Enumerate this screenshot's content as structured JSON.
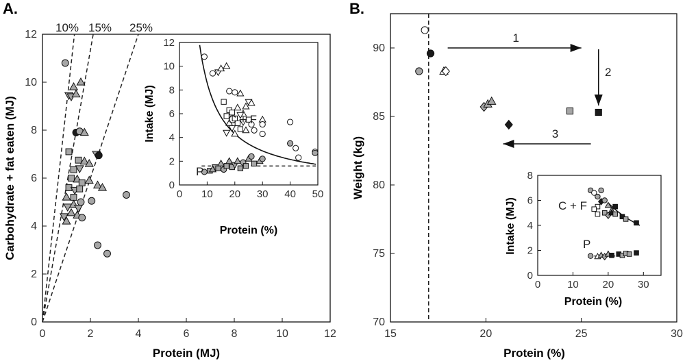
{
  "colors": {
    "gray_fill": "#a6a6a6",
    "dark_fill": "#1a1a1a",
    "axis": "#111111",
    "white": "#ffffff"
  },
  "chart_data": [
    {
      "panel": "A.",
      "type": "scatter",
      "xlabel": "Protein (MJ)",
      "ylabel": "Carbohydrate + fat eaten (MJ)",
      "xlim": [
        0,
        12
      ],
      "ylim": [
        0,
        12
      ],
      "xticks": [
        "0",
        "2",
        "4",
        "6",
        "8",
        "10",
        "12"
      ],
      "yticks": [
        "0",
        "2",
        "4",
        "6",
        "8",
        "10",
        "12"
      ],
      "reference_lines": [
        {
          "label": "10%",
          "slope": 9,
          "style": "dashed"
        },
        {
          "label": "15%",
          "slope": 5.67,
          "style": "dashed"
        },
        {
          "label": "25%",
          "slope": 3,
          "style": "dashed"
        }
      ],
      "points": [
        {
          "x": 0.95,
          "y": 10.8,
          "m": "circle",
          "f": "gray"
        },
        {
          "x": 1.1,
          "y": 9.45,
          "m": "tri-down",
          "f": "gray"
        },
        {
          "x": 1.3,
          "y": 9.8,
          "m": "tri-up",
          "f": "gray"
        },
        {
          "x": 1.6,
          "y": 10.0,
          "m": "tri-up",
          "f": "gray"
        },
        {
          "x": 1.2,
          "y": 9.4,
          "m": "tri-down",
          "f": "gray"
        },
        {
          "x": 1.4,
          "y": 9.5,
          "m": "tri-up",
          "f": "gray"
        },
        {
          "x": 1.4,
          "y": 7.9,
          "m": "circle",
          "f": "dark"
        },
        {
          "x": 1.55,
          "y": 7.95,
          "m": "circle",
          "f": "gray"
        },
        {
          "x": 1.75,
          "y": 7.9,
          "m": "tri-up",
          "f": "gray"
        },
        {
          "x": 1.1,
          "y": 7.1,
          "m": "square",
          "f": "gray"
        },
        {
          "x": 2.25,
          "y": 7.0,
          "m": "tri-down",
          "f": "gray"
        },
        {
          "x": 2.35,
          "y": 6.95,
          "m": "circle",
          "f": "dark"
        },
        {
          "x": 1.5,
          "y": 6.75,
          "m": "square",
          "f": "gray"
        },
        {
          "x": 1.75,
          "y": 6.7,
          "m": "tri-up",
          "f": "gray"
        },
        {
          "x": 1.95,
          "y": 6.6,
          "m": "tri-up",
          "f": "gray"
        },
        {
          "x": 1.3,
          "y": 6.35,
          "m": "square",
          "f": "gray"
        },
        {
          "x": 1.55,
          "y": 6.4,
          "m": "tri-down",
          "f": "gray"
        },
        {
          "x": 1.2,
          "y": 6.0,
          "m": "square",
          "f": "gray"
        },
        {
          "x": 1.45,
          "y": 5.95,
          "m": "tri-up",
          "f": "gray"
        },
        {
          "x": 1.65,
          "y": 5.8,
          "m": "square",
          "f": "gray"
        },
        {
          "x": 1.95,
          "y": 5.9,
          "m": "tri-up",
          "f": "gray"
        },
        {
          "x": 1.1,
          "y": 5.6,
          "m": "square",
          "f": "gray"
        },
        {
          "x": 1.35,
          "y": 5.5,
          "m": "tri-down",
          "f": "gray"
        },
        {
          "x": 1.55,
          "y": 5.55,
          "m": "square",
          "f": "gray"
        },
        {
          "x": 2.3,
          "y": 5.7,
          "m": "tri-up",
          "f": "gray"
        },
        {
          "x": 2.5,
          "y": 5.6,
          "m": "tri-up",
          "f": "gray"
        },
        {
          "x": 1.0,
          "y": 5.2,
          "m": "tri-up",
          "f": "gray"
        },
        {
          "x": 1.3,
          "y": 5.2,
          "m": "square",
          "f": "gray"
        },
        {
          "x": 1.6,
          "y": 5.0,
          "m": "circle",
          "f": "gray"
        },
        {
          "x": 2.05,
          "y": 5.05,
          "m": "circle",
          "f": "gray"
        },
        {
          "x": 1.05,
          "y": 4.8,
          "m": "tri-down",
          "f": "gray"
        },
        {
          "x": 1.3,
          "y": 4.9,
          "m": "tri-up",
          "f": "gray"
        },
        {
          "x": 1.5,
          "y": 4.75,
          "m": "tri-down",
          "f": "gray"
        },
        {
          "x": 1.2,
          "y": 4.55,
          "m": "tri-up",
          "f": "gray"
        },
        {
          "x": 1.45,
          "y": 4.45,
          "m": "tri-up",
          "f": "gray"
        },
        {
          "x": 0.9,
          "y": 4.4,
          "m": "tri-down",
          "f": "gray"
        },
        {
          "x": 1.65,
          "y": 4.35,
          "m": "circle",
          "f": "gray"
        },
        {
          "x": 1.0,
          "y": 4.2,
          "m": "tri-up",
          "f": "gray"
        },
        {
          "x": 3.5,
          "y": 5.3,
          "m": "circle",
          "f": "gray"
        },
        {
          "x": 2.3,
          "y": 3.2,
          "m": "circle",
          "f": "gray"
        },
        {
          "x": 2.7,
          "y": 2.85,
          "m": "circle",
          "f": "gray"
        }
      ],
      "inset": {
        "type": "scatter",
        "xlabel": "Protein (%)",
        "ylabel": "Intake (MJ)",
        "xlim": [
          0,
          50
        ],
        "ylim": [
          0,
          12
        ],
        "xticks": [
          "0",
          "10",
          "20",
          "30",
          "40",
          "50"
        ],
        "yticks": [
          "0",
          "2",
          "4",
          "6",
          "8",
          "10",
          "12"
        ],
        "labels": [
          "C + F",
          "P"
        ],
        "cf_curve": {
          "form": "y = 86/x",
          "style": "solid"
        },
        "p_line": {
          "y": 1.6,
          "style": "dashed"
        },
        "cf_points": [
          {
            "x": 9,
            "y": 10.8,
            "m": "circle",
            "f": "open"
          },
          {
            "x": 12,
            "y": 9.4,
            "m": "circle",
            "f": "open"
          },
          {
            "x": 14,
            "y": 9.5,
            "m": "tri-down",
            "f": "open"
          },
          {
            "x": 15,
            "y": 9.8,
            "m": "tri-up",
            "f": "open"
          },
          {
            "x": 17,
            "y": 10.0,
            "m": "tri-up",
            "f": "open"
          },
          {
            "x": 18,
            "y": 7.9,
            "m": "circle",
            "f": "open"
          },
          {
            "x": 20,
            "y": 7.8,
            "m": "circle",
            "f": "open"
          },
          {
            "x": 22,
            "y": 7.7,
            "m": "tri-up",
            "f": "open"
          },
          {
            "x": 16,
            "y": 7.0,
            "m": "square",
            "f": "open"
          },
          {
            "x": 25,
            "y": 7.0,
            "m": "tri-down",
            "f": "open"
          },
          {
            "x": 26,
            "y": 6.9,
            "m": "tri-up",
            "f": "open"
          },
          {
            "x": 18,
            "y": 6.3,
            "m": "square",
            "f": "open"
          },
          {
            "x": 19,
            "y": 6.1,
            "m": "square",
            "f": "open"
          },
          {
            "x": 21,
            "y": 6.5,
            "m": "tri-up",
            "f": "open"
          },
          {
            "x": 23,
            "y": 6.0,
            "m": "tri-up",
            "f": "open"
          },
          {
            "x": 24,
            "y": 6.6,
            "m": "tri-up",
            "f": "open"
          },
          {
            "x": 17,
            "y": 5.8,
            "m": "square",
            "f": "open"
          },
          {
            "x": 20,
            "y": 5.6,
            "m": "square",
            "f": "open"
          },
          {
            "x": 22,
            "y": 5.9,
            "m": "tri-down",
            "f": "open"
          },
          {
            "x": 25,
            "y": 5.5,
            "m": "square",
            "f": "open"
          },
          {
            "x": 18,
            "y": 5.2,
            "m": "tri-up",
            "f": "open"
          },
          {
            "x": 21,
            "y": 5.2,
            "m": "square",
            "f": "open"
          },
          {
            "x": 23,
            "y": 5.3,
            "m": "tri-down",
            "f": "open"
          },
          {
            "x": 26,
            "y": 5.1,
            "m": "circle",
            "f": "open"
          },
          {
            "x": 19,
            "y": 4.8,
            "m": "tri-down",
            "f": "open"
          },
          {
            "x": 22,
            "y": 4.7,
            "m": "square",
            "f": "open"
          },
          {
            "x": 24,
            "y": 4.6,
            "m": "tri-up",
            "f": "open"
          },
          {
            "x": 27,
            "y": 4.6,
            "m": "circle",
            "f": "open"
          },
          {
            "x": 17,
            "y": 4.4,
            "m": "tri-down",
            "f": "open"
          },
          {
            "x": 20,
            "y": 4.3,
            "m": "tri-up",
            "f": "open"
          },
          {
            "x": 30,
            "y": 5.5,
            "m": "tri-up",
            "f": "open"
          },
          {
            "x": 30,
            "y": 5.1,
            "m": "circle",
            "f": "open"
          },
          {
            "x": 30,
            "y": 4.3,
            "m": "circle",
            "f": "open"
          },
          {
            "x": 40,
            "y": 5.3,
            "m": "circle",
            "f": "open"
          },
          {
            "x": 42,
            "y": 3.1,
            "m": "circle",
            "f": "open"
          },
          {
            "x": 43,
            "y": 2.3,
            "m": "circle",
            "f": "open"
          },
          {
            "x": 49,
            "y": 2.8,
            "m": "circle",
            "f": "open"
          }
        ],
        "p_points": [
          {
            "x": 9,
            "y": 1.1,
            "m": "circle",
            "f": "gray"
          },
          {
            "x": 11,
            "y": 1.2,
            "m": "square",
            "f": "gray"
          },
          {
            "x": 12,
            "y": 1.3,
            "m": "tri-up",
            "f": "gray"
          },
          {
            "x": 13,
            "y": 1.5,
            "m": "tri-down",
            "f": "gray"
          },
          {
            "x": 14,
            "y": 1.4,
            "m": "square",
            "f": "gray"
          },
          {
            "x": 15,
            "y": 1.8,
            "m": "tri-up",
            "f": "gray"
          },
          {
            "x": 16,
            "y": 1.3,
            "m": "circle",
            "f": "gray"
          },
          {
            "x": 17,
            "y": 1.6,
            "m": "square",
            "f": "gray"
          },
          {
            "x": 18,
            "y": 2.0,
            "m": "tri-up",
            "f": "gray"
          },
          {
            "x": 19,
            "y": 1.5,
            "m": "square",
            "f": "gray"
          },
          {
            "x": 20,
            "y": 1.7,
            "m": "tri-down",
            "f": "gray"
          },
          {
            "x": 21,
            "y": 2.0,
            "m": "tri-up",
            "f": "gray"
          },
          {
            "x": 22,
            "y": 1.4,
            "m": "square",
            "f": "gray"
          },
          {
            "x": 23,
            "y": 1.9,
            "m": "circle",
            "f": "gray"
          },
          {
            "x": 24,
            "y": 1.6,
            "m": "square",
            "f": "gray"
          },
          {
            "x": 25,
            "y": 2.2,
            "m": "tri-up",
            "f": "gray"
          },
          {
            "x": 26,
            "y": 2.4,
            "m": "circle",
            "f": "gray"
          },
          {
            "x": 27,
            "y": 1.8,
            "m": "square",
            "f": "gray"
          },
          {
            "x": 29,
            "y": 2.0,
            "m": "tri-up",
            "f": "gray"
          },
          {
            "x": 30,
            "y": 2.2,
            "m": "circle",
            "f": "gray"
          },
          {
            "x": 40,
            "y": 3.5,
            "m": "circle",
            "f": "gray"
          },
          {
            "x": 49,
            "y": 2.7,
            "m": "circle",
            "f": "gray"
          }
        ]
      }
    },
    {
      "panel": "B.",
      "type": "scatter",
      "xlabel": "Protein (%)",
      "ylabel": "Weight (kg)",
      "xlim": [
        15,
        30
      ],
      "ylim": [
        70,
        92.5
      ],
      "xticks": [
        "15",
        "20",
        "25",
        "30"
      ],
      "yticks": [
        "70",
        "75",
        "80",
        "85",
        "90"
      ],
      "vline": {
        "x": 17.0,
        "style": "dashed"
      },
      "arrows": [
        {
          "label": "1",
          "from": [
            18.0,
            90.0
          ],
          "to": [
            25.0,
            90.0
          ]
        },
        {
          "label": "2",
          "from": [
            25.9,
            89.9
          ],
          "to": [
            25.9,
            85.8
          ]
        },
        {
          "label": "3",
          "from": [
            25.5,
            83.0
          ],
          "to": [
            20.9,
            83.0
          ]
        }
      ],
      "points": [
        {
          "x": 16.8,
          "y": 91.3,
          "m": "circle",
          "f": "open"
        },
        {
          "x": 17.1,
          "y": 89.6,
          "m": "circle",
          "f": "dark"
        },
        {
          "x": 16.5,
          "y": 88.3,
          "m": "circle",
          "f": "gray"
        },
        {
          "x": 17.8,
          "y": 88.3,
          "m": "tri-up",
          "f": "open"
        },
        {
          "x": 17.9,
          "y": 88.3,
          "m": "diamond",
          "f": "open"
        },
        {
          "x": 19.9,
          "y": 85.7,
          "m": "diamond",
          "f": "gray"
        },
        {
          "x": 20.1,
          "y": 85.9,
          "m": "tri-up",
          "f": "gray"
        },
        {
          "x": 20.3,
          "y": 86.1,
          "m": "tri-up",
          "f": "gray"
        },
        {
          "x": 21.2,
          "y": 84.4,
          "m": "diamond",
          "f": "dark"
        },
        {
          "x": 24.4,
          "y": 85.4,
          "m": "square",
          "f": "gray"
        },
        {
          "x": 25.9,
          "y": 85.3,
          "m": "square",
          "f": "dark"
        }
      ],
      "inset": {
        "type": "scatter",
        "xlabel": "Protein (%)",
        "ylabel": "Intake (MJ)",
        "xlim": [
          0,
          35
        ],
        "ylim": [
          0,
          8
        ],
        "xticks": [
          "0",
          "10",
          "20",
          "30"
        ],
        "yticks": [
          "0",
          "2",
          "4",
          "6",
          "8"
        ],
        "labels": [
          "C + F",
          "P"
        ],
        "cf_curve": {
          "form": "y = 116/x",
          "x_range": [
            20,
            29
          ],
          "style": "solid"
        },
        "p_line": {
          "y": 1.55,
          "x_range": [
            16,
            22
          ],
          "style": "solid"
        },
        "points": [
          {
            "x": 15,
            "y": 6.8,
            "m": "circle",
            "f": "gray"
          },
          {
            "x": 16,
            "y": 6.6,
            "m": "circle",
            "f": "open"
          },
          {
            "x": 17,
            "y": 6.3,
            "m": "circle",
            "f": "gray"
          },
          {
            "x": 18,
            "y": 6.8,
            "m": "circle",
            "f": "gray"
          },
          {
            "x": 17,
            "y": 5.5,
            "m": "square",
            "f": "open"
          },
          {
            "x": 18,
            "y": 5.9,
            "m": "diamond",
            "f": "dark"
          },
          {
            "x": 19,
            "y": 6.0,
            "m": "circle",
            "f": "gray"
          },
          {
            "x": 20,
            "y": 5.6,
            "m": "tri-up",
            "f": "gray"
          },
          {
            "x": 21,
            "y": 5.2,
            "m": "tri-up",
            "f": "gray"
          },
          {
            "x": 22,
            "y": 5.5,
            "m": "square",
            "f": "dark"
          },
          {
            "x": 16,
            "y": 5.3,
            "m": "square",
            "f": "open"
          },
          {
            "x": 19,
            "y": 5.0,
            "m": "square",
            "f": "gray"
          },
          {
            "x": 20,
            "y": 4.8,
            "m": "diamond",
            "f": "gray"
          },
          {
            "x": 21,
            "y": 5.0,
            "m": "tri-up",
            "f": "dark"
          },
          {
            "x": 22,
            "y": 4.9,
            "m": "square",
            "f": "gray"
          },
          {
            "x": 24,
            "y": 4.7,
            "m": "square",
            "f": "dark"
          },
          {
            "x": 25,
            "y": 4.5,
            "m": "square",
            "f": "gray"
          },
          {
            "x": 28,
            "y": 4.2,
            "m": "square",
            "f": "dark"
          },
          {
            "x": 17,
            "y": 4.9,
            "m": "square",
            "f": "open"
          },
          {
            "x": 15,
            "y": 1.55,
            "m": "circle",
            "f": "gray"
          },
          {
            "x": 17,
            "y": 1.5,
            "m": "tri-up",
            "f": "open"
          },
          {
            "x": 18,
            "y": 1.6,
            "m": "tri-up",
            "f": "gray"
          },
          {
            "x": 19,
            "y": 1.5,
            "m": "diamond",
            "f": "gray"
          },
          {
            "x": 20,
            "y": 1.7,
            "m": "tri-up",
            "f": "gray"
          },
          {
            "x": 21,
            "y": 1.6,
            "m": "square",
            "f": "dark"
          },
          {
            "x": 23,
            "y": 1.7,
            "m": "square",
            "f": "dark"
          },
          {
            "x": 24,
            "y": 1.6,
            "m": "square",
            "f": "gray"
          },
          {
            "x": 25,
            "y": 1.75,
            "m": "square",
            "f": "gray"
          },
          {
            "x": 26,
            "y": 1.7,
            "m": "square",
            "f": "gray"
          },
          {
            "x": 28,
            "y": 1.8,
            "m": "square",
            "f": "dark"
          }
        ]
      }
    }
  ]
}
